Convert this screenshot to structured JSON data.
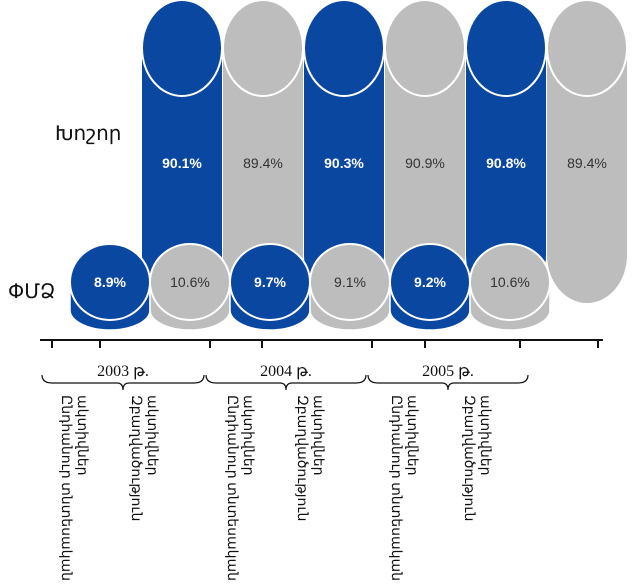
{
  "colors": {
    "blue": "#0a47a1",
    "gray": "#bdbdbd",
    "axis": "#111111"
  },
  "chart_data": {
    "type": "bar",
    "row_labels": {
      "large": "Խոշոր",
      "small": "ՓՄՁ"
    },
    "categories": [
      "Ընդհանուր տնտեսական ակտիվներ (ՈՒՄ)",
      "Զբաղվածություն"
    ],
    "groups": [
      {
        "year": "2003 թ.",
        "large": [
          90.1,
          89.4
        ],
        "small": [
          8.9,
          10.6
        ],
        "large_labels": [
          "90.1%",
          "89.4%"
        ],
        "small_labels": [
          "8.9%",
          "10.6%"
        ]
      },
      {
        "year": "2004 թ.",
        "large": [
          90.3,
          90.9
        ],
        "small": [
          9.7,
          9.1
        ],
        "large_labels": [
          "90.3%",
          "90.9%"
        ],
        "small_labels": [
          "9.7%",
          "9.1%"
        ]
      },
      {
        "year": "2005 թ.",
        "large": [
          90.8,
          89.4
        ],
        "small": [
          9.2,
          10.6
        ],
        "large_labels": [
          "90.8%",
          "89.4%"
        ],
        "small_labels": [
          "9.2%",
          "10.6%"
        ]
      }
    ],
    "category_labels": [
      [
        "Ընդհանուր տնտեսական",
        "ակտիվներ"
      ],
      [
        "Զբաղվածություն",
        "ակտիվներ"
      ]
    ]
  }
}
